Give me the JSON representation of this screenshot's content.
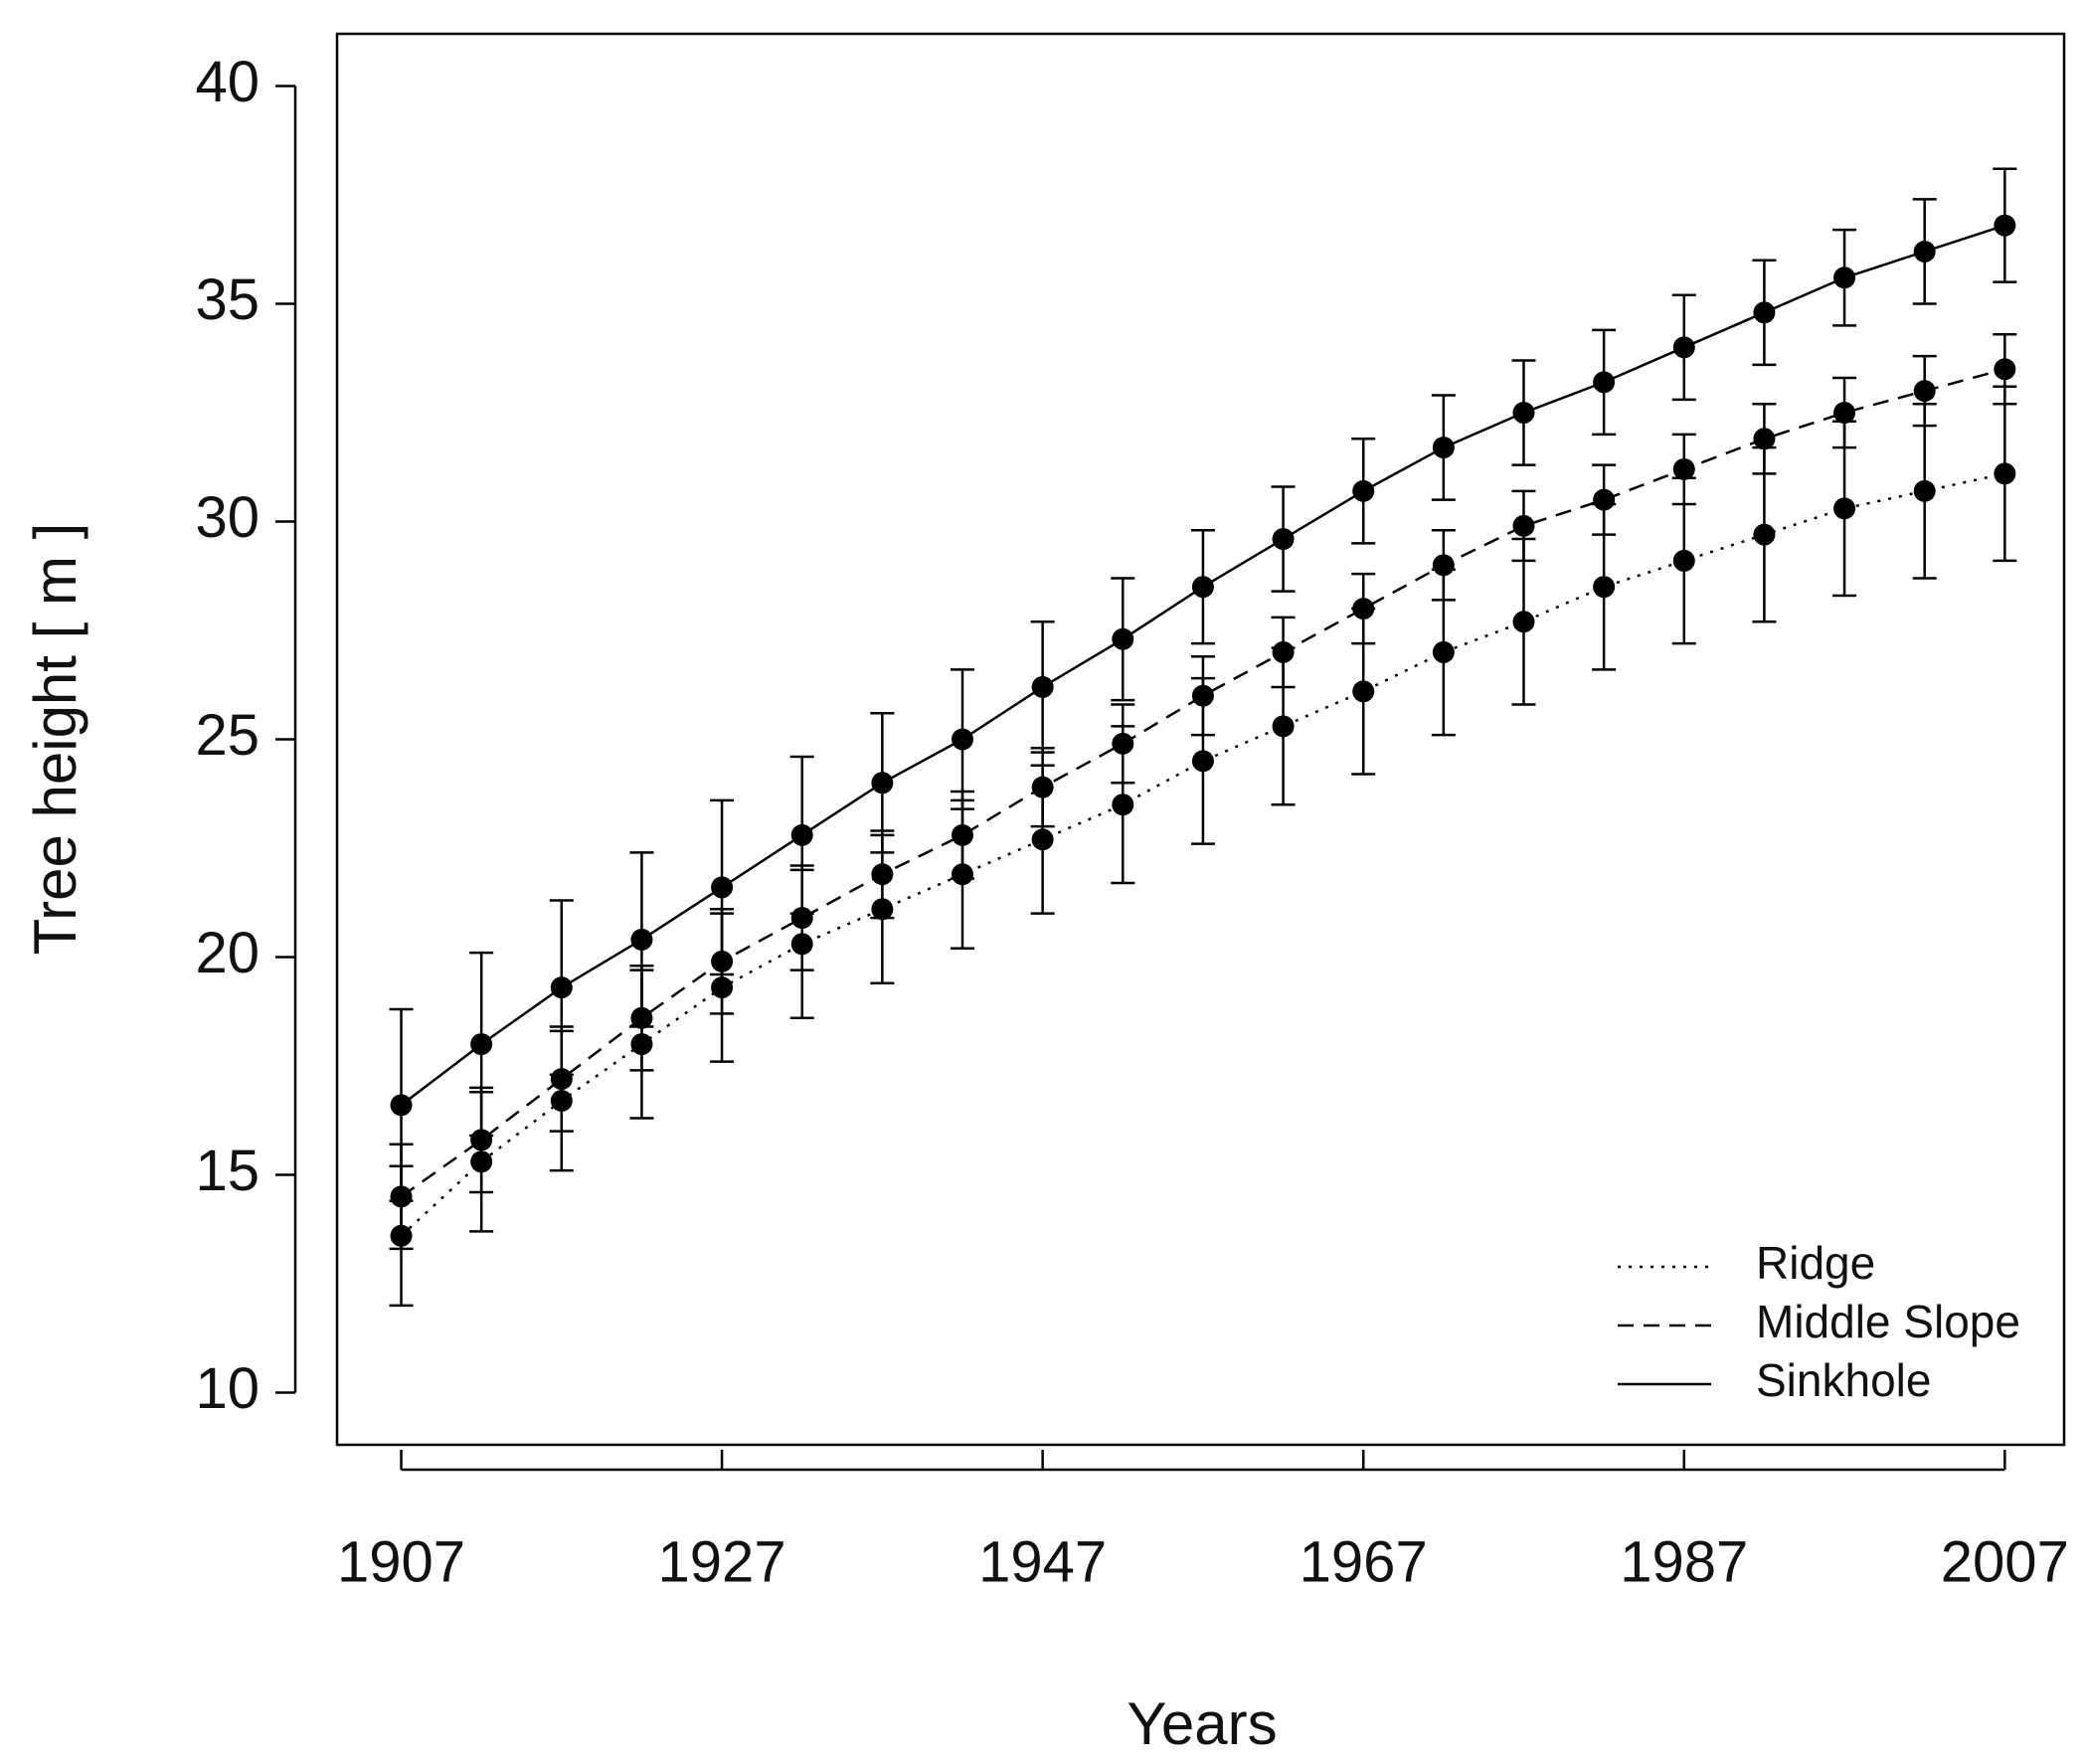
{
  "chart_data": {
    "type": "line",
    "x_label": "Years",
    "y_label": "Tree height [ m ]",
    "x": [
      1907,
      1912,
      1917,
      1922,
      1927,
      1932,
      1937,
      1942,
      1947,
      1952,
      1957,
      1962,
      1967,
      1972,
      1977,
      1982,
      1987,
      1992,
      1997,
      2002,
      2007
    ],
    "series": [
      {
        "name": "Ridge",
        "color": "#000000",
        "linestyle": "dotted",
        "values": [
          13.6,
          15.3,
          16.7,
          18.0,
          19.3,
          20.3,
          21.1,
          21.9,
          22.7,
          23.5,
          24.5,
          25.3,
          26.1,
          27.0,
          27.7,
          28.5,
          29.1,
          29.7,
          30.3,
          30.7,
          31.1
        ],
        "errors": [
          1.6,
          1.6,
          1.6,
          1.7,
          1.7,
          1.7,
          1.7,
          1.7,
          1.7,
          1.8,
          1.9,
          1.8,
          1.9,
          1.9,
          1.9,
          1.9,
          1.9,
          2.0,
          2.0,
          2.0,
          2.0
        ]
      },
      {
        "name": "Middle Slope",
        "color": "#000000",
        "linestyle": "dashed",
        "values": [
          14.5,
          15.8,
          17.2,
          18.6,
          19.9,
          20.9,
          21.9,
          22.8,
          23.9,
          24.9,
          26.0,
          27.0,
          28.0,
          29.0,
          29.9,
          30.5,
          31.2,
          31.9,
          32.5,
          33.0,
          33.5
        ],
        "errors": [
          1.2,
          1.2,
          1.2,
          1.2,
          1.2,
          1.2,
          1.0,
          1.0,
          0.9,
          0.9,
          0.9,
          0.8,
          0.8,
          0.8,
          0.8,
          0.8,
          0.8,
          0.8,
          0.8,
          0.8,
          0.8
        ]
      },
      {
        "name": "Sinkhole",
        "color": "#000000",
        "linestyle": "solid",
        "values": [
          16.6,
          18.0,
          19.3,
          20.4,
          21.6,
          22.8,
          24.0,
          25.0,
          26.2,
          27.3,
          28.5,
          29.6,
          30.7,
          31.7,
          32.5,
          33.2,
          34.0,
          34.8,
          35.6,
          36.2,
          36.8
        ],
        "errors": [
          2.2,
          2.1,
          2.0,
          2.0,
          2.0,
          1.8,
          1.6,
          1.6,
          1.5,
          1.4,
          1.3,
          1.2,
          1.2,
          1.2,
          1.2,
          1.2,
          1.2,
          1.2,
          1.1,
          1.2,
          1.3
        ]
      }
    ],
    "xlim": [
      1903,
      2010.7
    ],
    "ylim": [
      8.8,
      41.2
    ],
    "xticks": [
      1907,
      1927,
      1947,
      1967,
      1987,
      2007
    ],
    "yticks": [
      10,
      15,
      20,
      25,
      30,
      35,
      40
    ],
    "grid": false,
    "legend": "lower right"
  }
}
